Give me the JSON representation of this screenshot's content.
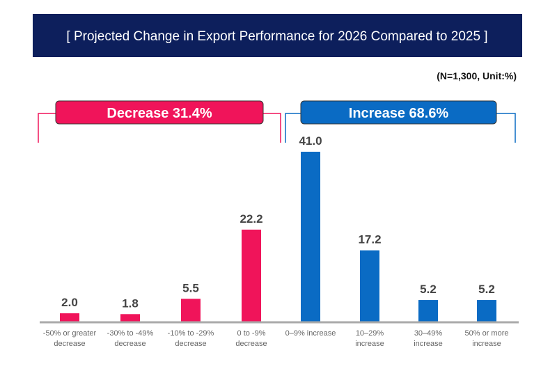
{
  "chart_data": {
    "type": "bar",
    "title": "[ Projected Change in Export Performance for 2026 Compared to 2025 ]",
    "note": "(N=1,300, Unit:%)",
    "categories": [
      [
        "-50% or greater",
        "decrease"
      ],
      [
        "-30% to -49%",
        "decrease"
      ],
      [
        "-10% to -29%",
        "decrease"
      ],
      [
        "0 to -9%",
        "decrease"
      ],
      [
        "0–9% increase"
      ],
      [
        "10–29%",
        "increase"
      ],
      [
        "30–49%",
        "increase"
      ],
      [
        "50% or more",
        "increase"
      ]
    ],
    "values": [
      2.0,
      1.8,
      5.5,
      22.2,
      41.0,
      17.2,
      5.2,
      5.2
    ],
    "groups": [
      {
        "label": "Decrease 31.4%",
        "color": "#f0145a",
        "indices": [
          0,
          1,
          2,
          3
        ]
      },
      {
        "label": "Increase 68.6%",
        "color": "#0a6bc4",
        "indices": [
          4,
          5,
          6,
          7
        ]
      }
    ],
    "ylim": [
      0,
      41
    ],
    "grid": false,
    "colors": {
      "title_bg": "#0d1f5c",
      "decrease": "#f0145a",
      "increase": "#0a6bc4",
      "value_text": "#444444",
      "axis": "#aaaaaa"
    }
  }
}
